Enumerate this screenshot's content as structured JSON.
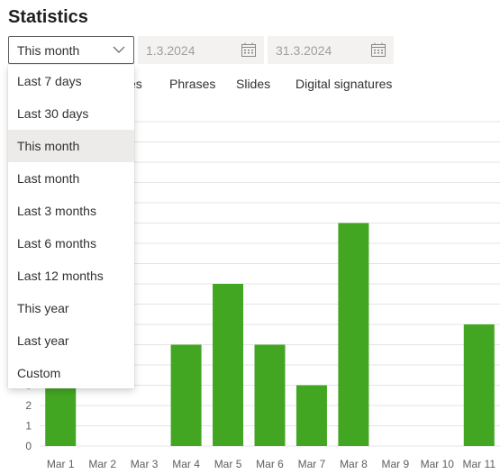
{
  "page": {
    "title": "Statistics"
  },
  "period_select": {
    "value": "This month",
    "options": [
      "Last 7 days",
      "Last 30 days",
      "This month",
      "Last month",
      "Last 3 months",
      "Last 6 months",
      "Last 12 months",
      "This year",
      "Last year",
      "Custom"
    ],
    "selected_index": 2
  },
  "date_range": {
    "from": "1.3.2024",
    "to": "31.3.2024"
  },
  "tabs": [
    {
      "label": "es"
    },
    {
      "label": "Phrases"
    },
    {
      "label": "Slides"
    },
    {
      "label": "Digital signatures"
    }
  ],
  "colors": {
    "bar": "#43a623",
    "grid": "#e5e5e5",
    "axis_text": "#605e5c"
  },
  "chart_data": {
    "type": "bar",
    "categories": [
      "Mar 1",
      "Mar 2",
      "Mar 3",
      "Mar 4",
      "Mar 5",
      "Mar 6",
      "Mar 7",
      "Mar 8",
      "Mar 9",
      "Mar 10",
      "Mar 11"
    ],
    "values": [
      3,
      0,
      0,
      5,
      8,
      5,
      3,
      11,
      0,
      0,
      6
    ],
    "yticks": [
      "0",
      "1",
      "2",
      "3"
    ],
    "ylim": [
      0,
      16
    ],
    "grid": true,
    "title": "",
    "xlabel": "",
    "ylabel": ""
  }
}
